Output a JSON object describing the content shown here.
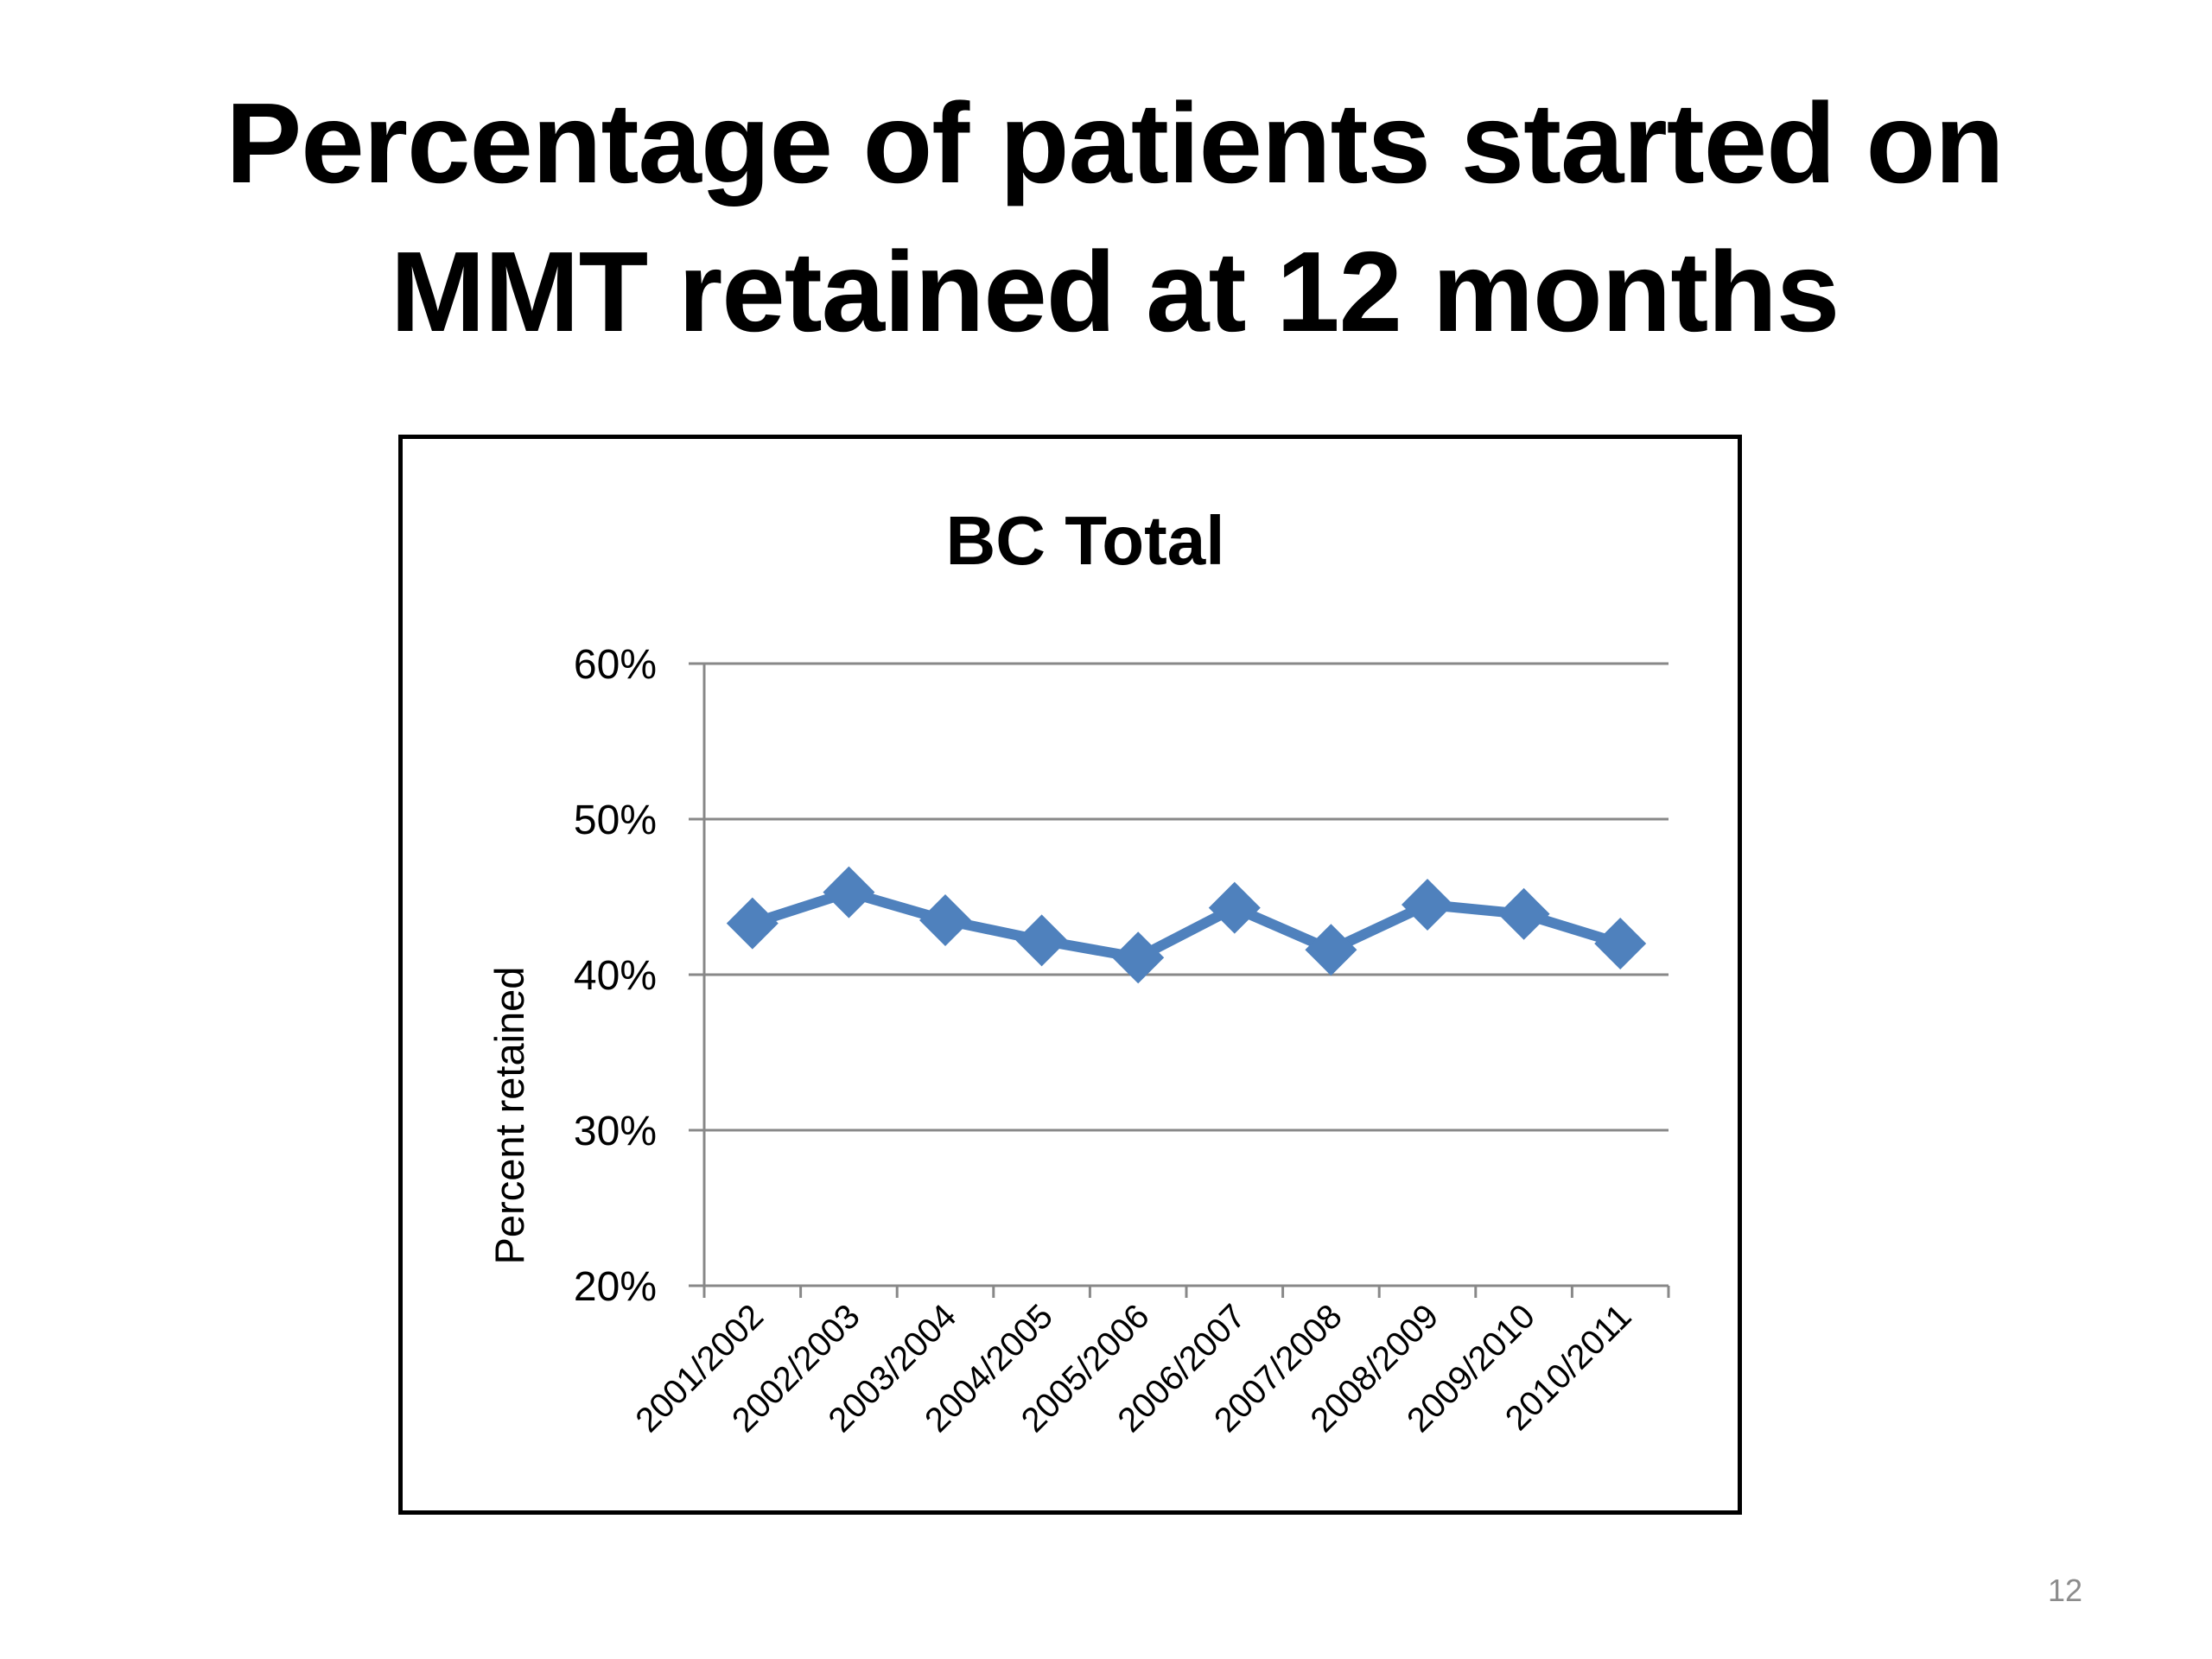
{
  "slide": {
    "title_line1": "Percentage of patients started on",
    "title_line2": "MMT retained at 12 months",
    "page_number": "12"
  },
  "chart_data": {
    "type": "line",
    "title": "BC Total",
    "xlabel": "",
    "ylabel": "Percent retained",
    "categories": [
      "2001/2002",
      "2002/2003",
      "2003/2004",
      "2004/2005",
      "2005/2006",
      "2006/2007",
      "2007/2008",
      "2008/2009",
      "2009/2010",
      "2010/2011"
    ],
    "series": [
      {
        "values": [
          0.433,
          0.453,
          0.435,
          0.422,
          0.411,
          0.443,
          0.416,
          0.445,
          0.439,
          0.42
        ]
      }
    ],
    "ylim": [
      0.2,
      0.6
    ],
    "yticks": [
      0.2,
      0.3,
      0.4,
      0.5,
      0.6
    ],
    "ytick_labels": [
      "20%",
      "30%",
      "40%",
      "50%",
      "60%"
    ],
    "grid": true,
    "marker": "diamond",
    "colors": {
      "series": "#4f81bd",
      "grid": "#888888",
      "axis": "#888888"
    }
  }
}
